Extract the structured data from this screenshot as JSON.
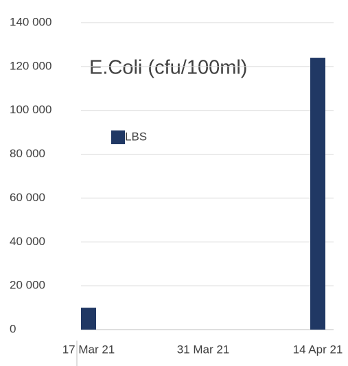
{
  "chart_data": {
    "type": "bar",
    "title": "E.Coli (cfu/100ml)",
    "categories": [
      "17 Mar 21",
      "31 Mar 21",
      "14 Apr 21"
    ],
    "series": [
      {
        "name": "LBS",
        "color": "#203864",
        "values": [
          10000,
          null,
          124000
        ]
      }
    ],
    "ylim": [
      0,
      140000
    ],
    "yticks": [
      0,
      {
        "value": 20000,
        "label": "20 000"
      },
      {
        "value": 40000,
        "label": "40 000"
      },
      {
        "value": 60000,
        "label": "60 000"
      },
      {
        "value": 80000,
        "label": "80 000"
      },
      {
        "value": 100000,
        "label": "100 000"
      },
      {
        "value": 120000,
        "label": "120 000"
      },
      {
        "value": 140000,
        "label": "140 000"
      }
    ],
    "grid": true
  }
}
